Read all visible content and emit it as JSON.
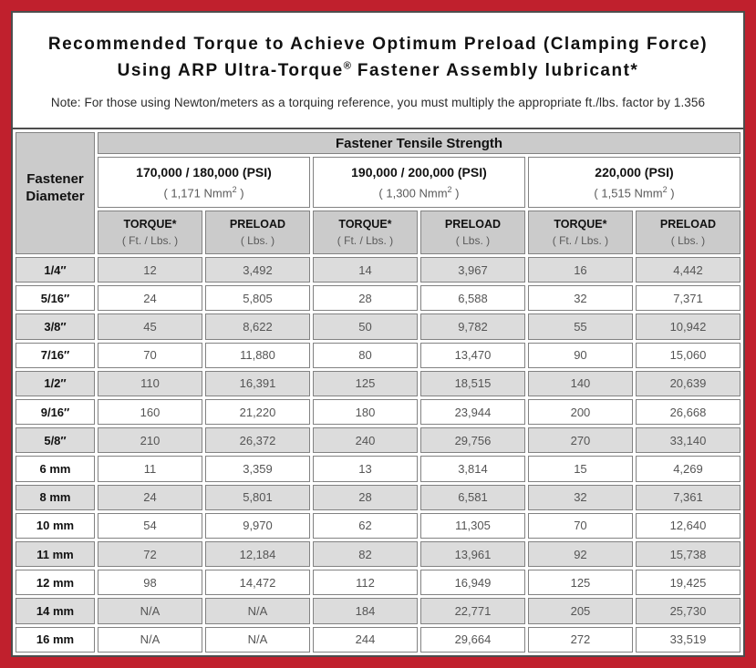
{
  "header": {
    "title_line1": "Recommended Torque to Achieve Optimum Preload (Clamping Force)",
    "title_line2_before": "Using ARP Ultra-Torque",
    "title_line2_regmark": "®",
    "title_line2_after": " Fastener Assembly lubricant*",
    "note": "Note: For those using Newton/meters as a torquing reference, you must multiply the appropriate ft./lbs. factor by 1.356"
  },
  "table": {
    "corner_header_line1": "Fastener",
    "corner_header_line2": "Diameter",
    "tensile_strength_header": "Fastener Tensile Strength",
    "strength_groups": [
      {
        "psi": "170,000 / 180,000 (PSI)",
        "nmm_before": "( 1,171 Nmm",
        "nmm_sup": "2",
        "nmm_after": " )"
      },
      {
        "psi": "190,000 / 200,000 (PSI)",
        "nmm_before": "( 1,300 Nmm",
        "nmm_sup": "2",
        "nmm_after": " )"
      },
      {
        "psi": "220,000 (PSI)",
        "nmm_before": "( 1,515 Nmm",
        "nmm_sup": "2",
        "nmm_after": " )"
      }
    ],
    "col_headers": [
      {
        "label": "TORQUE*",
        "unit": "( Ft. / Lbs. )"
      },
      {
        "label": "PRELOAD",
        "unit": "( Lbs. )"
      },
      {
        "label": "TORQUE*",
        "unit": "( Ft. / Lbs. )"
      },
      {
        "label": "PRELOAD",
        "unit": "( Lbs. )"
      },
      {
        "label": "TORQUE*",
        "unit": "( Ft. / Lbs. )"
      },
      {
        "label": "PRELOAD",
        "unit": "( Lbs. )"
      }
    ],
    "rows": [
      {
        "diameter": "1/4″",
        "values": [
          "12",
          "3,492",
          "14",
          "3,967",
          "16",
          "4,442"
        ]
      },
      {
        "diameter": "5/16″",
        "values": [
          "24",
          "5,805",
          "28",
          "6,588",
          "32",
          "7,371"
        ]
      },
      {
        "diameter": "3/8″",
        "values": [
          "45",
          "8,622",
          "50",
          "9,782",
          "55",
          "10,942"
        ]
      },
      {
        "diameter": "7/16″",
        "values": [
          "70",
          "11,880",
          "80",
          "13,470",
          "90",
          "15,060"
        ]
      },
      {
        "diameter": "1/2″",
        "values": [
          "110",
          "16,391",
          "125",
          "18,515",
          "140",
          "20,639"
        ]
      },
      {
        "diameter": "9/16″",
        "values": [
          "160",
          "21,220",
          "180",
          "23,944",
          "200",
          "26,668"
        ]
      },
      {
        "diameter": "5/8″",
        "values": [
          "210",
          "26,372",
          "240",
          "29,756",
          "270",
          "33,140"
        ]
      },
      {
        "diameter": "6 mm",
        "values": [
          "11",
          "3,359",
          "13",
          "3,814",
          "15",
          "4,269"
        ]
      },
      {
        "diameter": "8 mm",
        "values": [
          "24",
          "5,801",
          "28",
          "6,581",
          "32",
          "7,361"
        ]
      },
      {
        "diameter": "10 mm",
        "values": [
          "54",
          "9,970",
          "62",
          "11,305",
          "70",
          "12,640"
        ]
      },
      {
        "diameter": "11 mm",
        "values": [
          "72",
          "12,184",
          "82",
          "13,961",
          "92",
          "15,738"
        ]
      },
      {
        "diameter": "12 mm",
        "values": [
          "98",
          "14,472",
          "112",
          "16,949",
          "125",
          "19,425"
        ]
      },
      {
        "diameter": "14 mm",
        "values": [
          "N/A",
          "N/A",
          "184",
          "22,771",
          "205",
          "25,730"
        ]
      },
      {
        "diameter": "16 mm",
        "values": [
          "N/A",
          "N/A",
          "244",
          "29,664",
          "272",
          "33,519"
        ]
      }
    ]
  },
  "colors": {
    "frame_red": "#C0202D",
    "panel_border": "#4d4d4d",
    "header_gray": "#cbcbcb",
    "row_stripe_gray": "#dcdcdc",
    "cell_border_gray": "#828282",
    "value_text_gray": "#555555"
  }
}
